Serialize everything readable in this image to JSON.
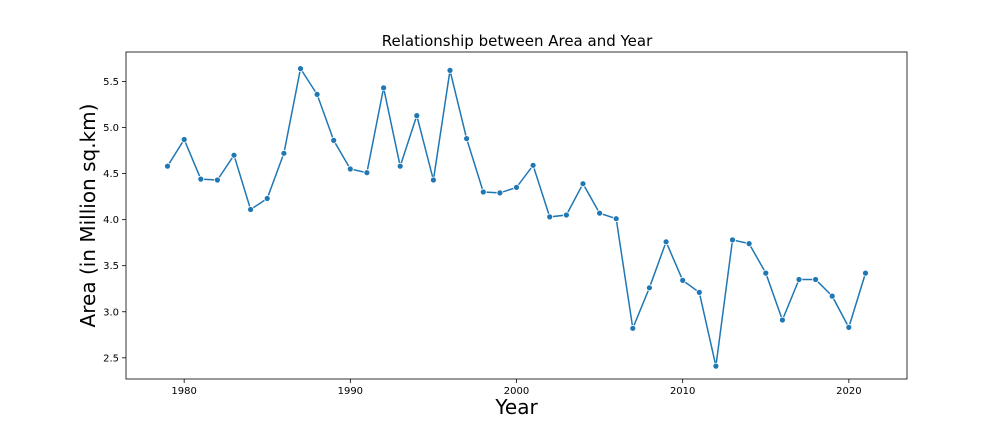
{
  "chart_data": {
    "type": "line",
    "title": "Relationship between Area and Year",
    "xlabel": "Year",
    "ylabel": "Area (in Million sq.km)",
    "xlim": [
      1976.5,
      2023.5
    ],
    "ylim": [
      2.27,
      5.82
    ],
    "x_ticks": [
      1980,
      1990,
      2000,
      2010,
      2020
    ],
    "y_ticks": [
      2.5,
      3.0,
      3.5,
      4.0,
      4.5,
      5.0,
      5.5
    ],
    "y_tick_labels": [
      "2.5",
      "3.0",
      "3.5",
      "4.0",
      "4.5",
      "5.0",
      "5.5"
    ],
    "grid": false,
    "series_color": "#1f77b4",
    "marker": "circle",
    "x": [
      1979,
      1980,
      1981,
      1982,
      1983,
      1984,
      1985,
      1986,
      1987,
      1988,
      1989,
      1990,
      1991,
      1992,
      1993,
      1994,
      1995,
      1996,
      1997,
      1998,
      1999,
      2000,
      2001,
      2002,
      2003,
      2004,
      2005,
      2006,
      2007,
      2008,
      2009,
      2010,
      2011,
      2012,
      2013,
      2014,
      2015,
      2016,
      2017,
      2018,
      2019,
      2020,
      2021
    ],
    "y": [
      4.58,
      4.87,
      4.44,
      4.43,
      4.7,
      4.11,
      4.23,
      4.72,
      5.64,
      5.36,
      4.86,
      4.55,
      4.51,
      5.43,
      4.58,
      5.13,
      4.43,
      5.62,
      4.88,
      4.3,
      4.29,
      4.35,
      4.59,
      4.03,
      4.05,
      4.39,
      4.07,
      4.01,
      2.82,
      3.26,
      3.76,
      3.34,
      3.21,
      2.41,
      3.78,
      3.74,
      3.42,
      2.91,
      3.35,
      3.35,
      3.17,
      2.83,
      3.42
    ]
  }
}
